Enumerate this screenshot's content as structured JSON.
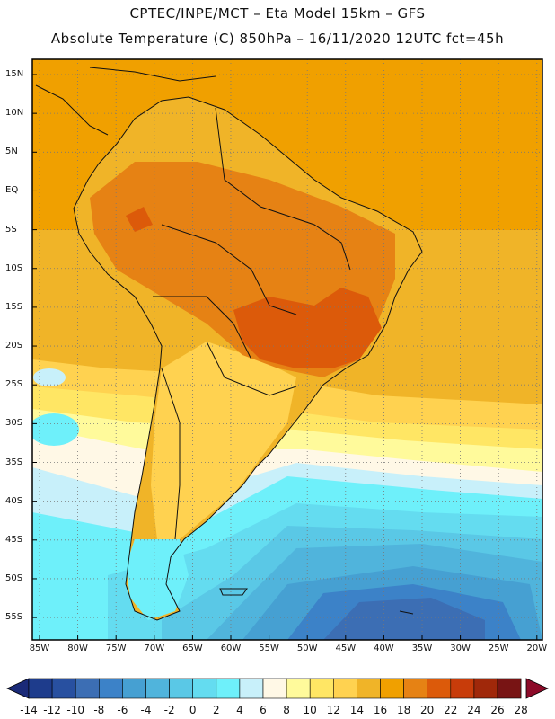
{
  "header": {
    "line1": "CPTEC/INPE/MCT –  Eta Model 15km – GFS",
    "line2": "Absolute Temperature (C) 850hPa – 16/11/2020 12UTC fct=45h"
  },
  "map": {
    "region": "South America",
    "lat_labels": [
      "15N",
      "10N",
      "5N",
      "EQ",
      "5S",
      "10S",
      "15S",
      "20S",
      "25S",
      "30S",
      "35S",
      "40S",
      "45S",
      "50S",
      "55S"
    ],
    "lon_labels": [
      "85W",
      "80W",
      "75W",
      "70W",
      "65W",
      "60W",
      "55W",
      "50W",
      "45W",
      "40W",
      "35W",
      "30W",
      "25W",
      "20W"
    ]
  },
  "colorbar": {
    "labels": [
      "-14",
      "-12",
      "-10",
      "-8",
      "-6",
      "-4",
      "-2",
      "0",
      "2",
      "4",
      "6",
      "8",
      "10",
      "12",
      "14",
      "16",
      "18",
      "20",
      "22",
      "24",
      "26",
      "28"
    ],
    "colors": [
      "#1e3c8c",
      "#2850a0",
      "#3c6eb4",
      "#3c82c8",
      "#46a0d2",
      "#50b4dc",
      "#5ac8e6",
      "#64dcf0",
      "#6ef0fa",
      "#c8f0fa",
      "#fff8e6",
      "#fffa9b",
      "#ffe664",
      "#ffd250",
      "#f0b428",
      "#f0a000",
      "#e68214",
      "#dc5a0a",
      "#c83c0a",
      "#a0280a",
      "#781414",
      "#8c0a28"
    ],
    "low_arrow_color": "#1a2a78",
    "high_arrow_color": "#8c0a28"
  }
}
